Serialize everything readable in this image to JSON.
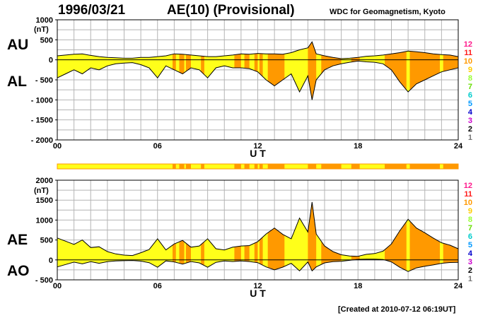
{
  "header": {
    "date": "1996/03/21",
    "title": "AE(10) (Provisional)",
    "org": "WDC for Geomagnetism, Kyoto"
  },
  "footer": {
    "created": "[Created at 2010-07-12 06:19UT]"
  },
  "colors": {
    "axis": "#000000",
    "grid": "#b4b4b4",
    "fill_low": "#ffff1a",
    "fill_high": "#ff9900",
    "level_colors": [
      "#bdbdbd",
      "#777777",
      "#000000",
      "#cc00cc",
      "#0000cc",
      "#0099ff",
      "#00cccc",
      "#66dd00",
      "#99ff33",
      "#ffcc00",
      "#ff9900",
      "#ff1a1a",
      "#ff1a8c"
    ]
  },
  "activity_levels": [
    "12",
    "11",
    "10",
    "9",
    "8",
    "7",
    "6",
    "5",
    "4",
    "3",
    "2",
    "1"
  ],
  "chart_data": [
    {
      "type": "area",
      "name": "AU/AL panel",
      "unit_label": "(nT)",
      "left_labels": [
        "AU",
        "AL"
      ],
      "xlabel": "U T",
      "xlim": [
        0,
        24
      ],
      "ylim": [
        -2000,
        1000
      ],
      "xticks": [
        "00",
        "06",
        "12",
        "18",
        "24"
      ],
      "yticks": [
        1000,
        500,
        0,
        -500,
        -1000,
        -1500,
        -2000
      ],
      "x_hours": [
        0,
        0.5,
        1,
        1.5,
        2,
        2.5,
        3,
        3.5,
        4,
        4.5,
        5,
        5.5,
        6,
        6.5,
        7,
        7.5,
        8,
        8.5,
        9,
        9.5,
        10,
        10.5,
        11,
        11.5,
        12,
        12.5,
        13,
        13.5,
        14,
        14.5,
        15,
        15.25,
        15.5,
        16,
        16.5,
        17,
        17.5,
        18,
        18.5,
        19,
        19.5,
        20,
        20.5,
        21,
        21.5,
        22,
        22.5,
        23,
        23.5,
        24
      ],
      "series": [
        {
          "name": "AU",
          "values": [
            100,
            120,
            140,
            150,
            110,
            80,
            60,
            50,
            40,
            40,
            60,
            60,
            80,
            100,
            150,
            140,
            120,
            100,
            80,
            80,
            100,
            120,
            150,
            140,
            160,
            150,
            150,
            140,
            180,
            250,
            300,
            450,
            150,
            100,
            60,
            30,
            40,
            60,
            90,
            100,
            120,
            150,
            180,
            220,
            200,
            180,
            150,
            130,
            120,
            80
          ]
        },
        {
          "name": "AL",
          "values": [
            -450,
            -350,
            -250,
            -350,
            -200,
            -250,
            -150,
            -100,
            -80,
            -70,
            -120,
            -200,
            -450,
            -150,
            -250,
            -350,
            -200,
            -250,
            -450,
            -200,
            -150,
            -200,
            -200,
            -220,
            -300,
            -500,
            -650,
            -500,
            -350,
            -800,
            -400,
            -1000,
            -500,
            -250,
            -150,
            -100,
            -60,
            -30,
            -50,
            -60,
            -100,
            -250,
            -550,
            -800,
            -600,
            -500,
            -400,
            -300,
            -250,
            -200
          ]
        }
      ]
    },
    {
      "type": "area",
      "name": "AE/AO panel",
      "unit_label": "(nT)",
      "left_labels": [
        "AE",
        "AO"
      ],
      "xlabel": "U T",
      "xlim": [
        0,
        24
      ],
      "ylim": [
        -500,
        2000
      ],
      "xticks": [
        "00",
        "06",
        "12",
        "18",
        "24"
      ],
      "yticks": [
        2000,
        1500,
        1000,
        500,
        0,
        -500
      ],
      "x_hours": [
        0,
        0.5,
        1,
        1.5,
        2,
        2.5,
        3,
        3.5,
        4,
        4.5,
        5,
        5.5,
        6,
        6.5,
        7,
        7.5,
        8,
        8.5,
        9,
        9.5,
        10,
        10.5,
        11,
        11.5,
        12,
        12.5,
        13,
        13.5,
        14,
        14.5,
        15,
        15.25,
        15.5,
        16,
        16.5,
        17,
        17.5,
        18,
        18.5,
        19,
        19.5,
        20,
        20.5,
        21,
        21.5,
        22,
        22.5,
        23,
        23.5,
        24
      ],
      "series": [
        {
          "name": "AE",
          "values": [
            550,
            470,
            390,
            500,
            310,
            330,
            210,
            150,
            120,
            110,
            180,
            260,
            530,
            250,
            400,
            490,
            320,
            350,
            530,
            280,
            250,
            320,
            350,
            360,
            460,
            650,
            800,
            640,
            530,
            1050,
            700,
            1450,
            650,
            350,
            210,
            130,
            100,
            90,
            140,
            160,
            220,
            400,
            730,
            1020,
            800,
            680,
            550,
            430,
            370,
            280
          ]
        },
        {
          "name": "AO",
          "values": [
            -175,
            -115,
            -55,
            -100,
            -45,
            -85,
            -45,
            -25,
            -20,
            -15,
            -30,
            -70,
            -185,
            -25,
            -50,
            -105,
            -40,
            -75,
            -185,
            -60,
            -25,
            -40,
            -25,
            -40,
            -70,
            -175,
            -250,
            -180,
            -85,
            -275,
            -50,
            -275,
            -175,
            -75,
            -45,
            -35,
            -10,
            15,
            20,
            20,
            10,
            -50,
            -185,
            -290,
            -200,
            -160,
            -125,
            -85,
            -65,
            -60
          ]
        }
      ]
    }
  ],
  "activity_bar": {
    "segments_high": [
      [
        6.9,
        7.1
      ],
      [
        7.3,
        7.6
      ],
      [
        7.7,
        8.0
      ],
      [
        8.6,
        8.8
      ],
      [
        10.6,
        11.0
      ],
      [
        11.2,
        11.5
      ],
      [
        11.8,
        12.0
      ],
      [
        12.1,
        12.3
      ],
      [
        12.6,
        13.6
      ],
      [
        15.0,
        15.5
      ],
      [
        15.8,
        17.0
      ],
      [
        17.6,
        18.1
      ],
      [
        19.6,
        20.9
      ],
      [
        21.1,
        22.9
      ],
      [
        23.1,
        24.0
      ]
    ]
  }
}
